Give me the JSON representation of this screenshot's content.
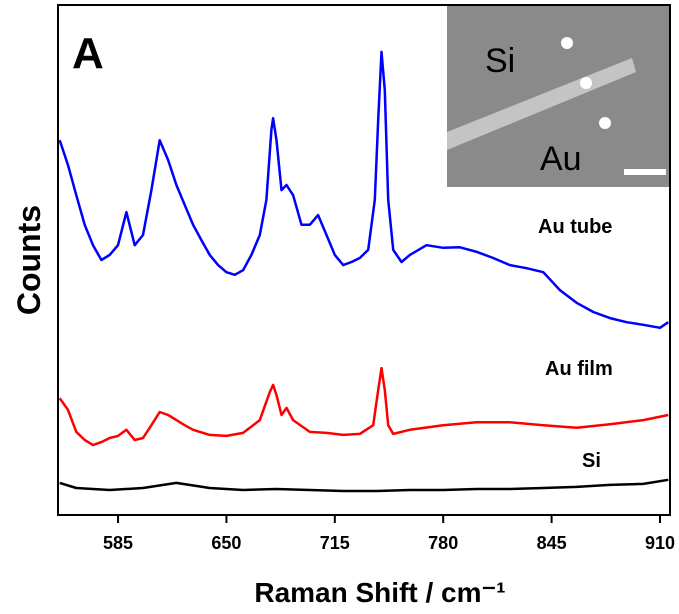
{
  "chart_data": {
    "type": "line",
    "x_label": "Raman Shift / cm⁻¹",
    "y_label": "Counts",
    "xlim": [
      549,
      916
    ],
    "xticks": [
      585,
      650,
      715,
      780,
      845,
      910
    ],
    "ylim": [
      0,
      100
    ],
    "annotations": [
      "A",
      "Au tube",
      "Au film",
      "Si"
    ],
    "inset_labels": [
      "Si",
      "Au"
    ],
    "series": [
      {
        "color": "#0000ff",
        "x": [
          550,
          555,
          560,
          565,
          570,
          575,
          580,
          585,
          590,
          595,
          600,
          605,
          610,
          615,
          620,
          625,
          630,
          635,
          640,
          645,
          650,
          655,
          660,
          665,
          670,
          674,
          677,
          678,
          680,
          683,
          686,
          690,
          695,
          700,
          705,
          710,
          715,
          720,
          725,
          730,
          735,
          739,
          741,
          743,
          745,
          747,
          750,
          755,
          760,
          770,
          780,
          790,
          800,
          810,
          820,
          830,
          840,
          850,
          860,
          870,
          880,
          890,
          900,
          910,
          915
        ],
        "values": [
          73.5,
          68.6,
          62.7,
          56.9,
          52.9,
          50.0,
          51.0,
          52.9,
          59.4,
          52.9,
          54.9,
          63.7,
          73.5,
          69.6,
          64.7,
          60.8,
          56.9,
          53.9,
          51.0,
          49.0,
          47.6,
          47.1,
          48.0,
          51.0,
          54.9,
          61.8,
          75.5,
          77.8,
          73.5,
          63.7,
          64.7,
          62.7,
          56.9,
          56.9,
          58.8,
          54.9,
          51.0,
          49.0,
          49.6,
          50.4,
          52.0,
          61.8,
          77.5,
          90.8,
          83.3,
          61.8,
          52.0,
          49.6,
          51.0,
          52.9,
          52.4,
          52.5,
          51.6,
          50.4,
          49.0,
          48.4,
          47.6,
          44.1,
          41.6,
          39.8,
          38.6,
          37.8,
          37.3,
          36.7,
          37.8
        ]
      },
      {
        "color": "#ff0000",
        "x": [
          550,
          555,
          560,
          565,
          570,
          575,
          580,
          585,
          590,
          595,
          600,
          605,
          610,
          615,
          620,
          625,
          630,
          640,
          650,
          660,
          670,
          676,
          678,
          680,
          683,
          686,
          690,
          700,
          710,
          720,
          730,
          738,
          741,
          743,
          745,
          747,
          750,
          760,
          780,
          800,
          820,
          840,
          860,
          880,
          900,
          915
        ],
        "values": [
          22.9,
          20.6,
          16.3,
          14.7,
          13.7,
          14.3,
          15.1,
          15.5,
          16.7,
          14.7,
          15.1,
          17.6,
          20.2,
          19.6,
          18.6,
          17.6,
          16.7,
          15.7,
          15.5,
          16.1,
          18.6,
          24.1,
          25.5,
          23.5,
          19.6,
          21.0,
          18.6,
          16.3,
          16.1,
          15.7,
          15.9,
          17.6,
          24.5,
          28.8,
          24.5,
          17.6,
          15.9,
          16.7,
          17.6,
          18.2,
          18.2,
          17.6,
          17.1,
          17.8,
          18.6,
          19.6
        ]
      },
      {
        "color": "#000000",
        "x": [
          550,
          560,
          580,
          600,
          620,
          640,
          660,
          680,
          700,
          720,
          740,
          760,
          780,
          800,
          820,
          840,
          860,
          880,
          900,
          915
        ],
        "values": [
          6.3,
          5.3,
          4.9,
          5.3,
          6.3,
          5.3,
          4.9,
          5.1,
          4.9,
          4.7,
          4.7,
          4.9,
          4.9,
          5.1,
          5.1,
          5.3,
          5.5,
          5.9,
          6.1,
          6.9
        ]
      }
    ]
  }
}
